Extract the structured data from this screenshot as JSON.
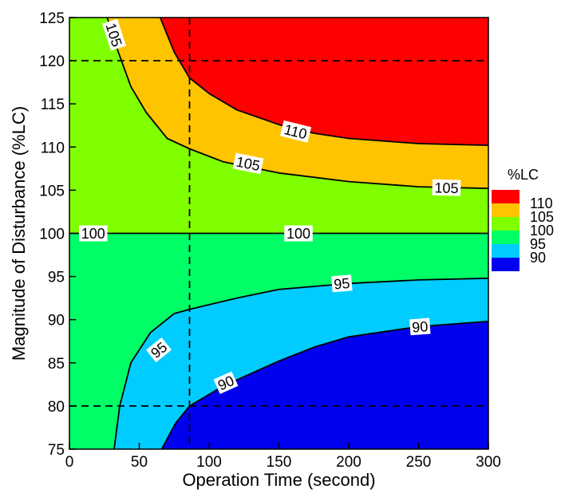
{
  "chart_data": {
    "type": "contour",
    "xlabel": "Operation Time (second)",
    "ylabel": "Magnitude of Disturbance (%LC)",
    "xlim": [
      0,
      300
    ],
    "ylim": [
      75,
      125
    ],
    "xticks": [
      0,
      50,
      100,
      150,
      200,
      250,
      300
    ],
    "yticks": [
      75,
      80,
      85,
      90,
      95,
      100,
      105,
      110,
      115,
      120,
      125
    ],
    "bands": [
      {
        "range": "> 110",
        "color": "#ff0000"
      },
      {
        "range": "105-110",
        "color": "#ffc400"
      },
      {
        "range": "100-105",
        "color": "#7fff00"
      },
      {
        "range": "95-100",
        "color": "#00ff66"
      },
      {
        "range": "90-95",
        "color": "#00ccff"
      },
      {
        "range": "< 90",
        "color": "#0000ee"
      }
    ],
    "contours": [
      {
        "level": 110,
        "points": [
          [
            65,
            125
          ],
          [
            75,
            121
          ],
          [
            86,
            118
          ],
          [
            100,
            116.2
          ],
          [
            120,
            114.3
          ],
          [
            150,
            112.6
          ],
          [
            175,
            111.6
          ],
          [
            200,
            111.0
          ],
          [
            250,
            110.4
          ],
          [
            300,
            110.2
          ]
        ]
      },
      {
        "level": 105,
        "points": [
          [
            27,
            125
          ],
          [
            35,
            121
          ],
          [
            44,
            117
          ],
          [
            55,
            114
          ],
          [
            70,
            111
          ],
          [
            86,
            109.8
          ],
          [
            110,
            108.3
          ],
          [
            150,
            107.0
          ],
          [
            200,
            106.0
          ],
          [
            250,
            105.4
          ],
          [
            300,
            105.2
          ]
        ]
      },
      {
        "level": 100,
        "points": [
          [
            0,
            100
          ],
          [
            300,
            100
          ]
        ]
      },
      {
        "level": 95,
        "points": [
          [
            32,
            75
          ],
          [
            36,
            80
          ],
          [
            44,
            85
          ],
          [
            58,
            88.5
          ],
          [
            75,
            90.7
          ],
          [
            86,
            91.2
          ],
          [
            120,
            92.5
          ],
          [
            150,
            93.5
          ],
          [
            200,
            94.2
          ],
          [
            250,
            94.6
          ],
          [
            300,
            94.8
          ]
        ]
      },
      {
        "level": 90,
        "points": [
          [
            66,
            75
          ],
          [
            76,
            78
          ],
          [
            86,
            80
          ],
          [
            110,
            82.3
          ],
          [
            150,
            85.2
          ],
          [
            175,
            86.8
          ],
          [
            200,
            88.0
          ],
          [
            250,
            89.2
          ],
          [
            300,
            89.8
          ]
        ]
      }
    ],
    "contour_labels": [
      {
        "text": "110",
        "x": 162,
        "y": 111.8
      },
      {
        "text": "105",
        "x": 128,
        "y": 108.1
      },
      {
        "text": "105",
        "x": 270,
        "y": 105.3
      },
      {
        "text": "105",
        "x": 32,
        "y": 123
      },
      {
        "text": "100",
        "x": 17,
        "y": 100
      },
      {
        "text": "100",
        "x": 164,
        "y": 100
      },
      {
        "text": "95",
        "x": 195,
        "y": 94.2
      },
      {
        "text": "95",
        "x": 64,
        "y": 86.5
      },
      {
        "text": "90",
        "x": 251,
        "y": 89.2
      },
      {
        "text": "90",
        "x": 112,
        "y": 82.7
      }
    ],
    "reference_lines": {
      "vertical": [
        86
      ],
      "horizontal": [
        120,
        80
      ]
    },
    "legend": {
      "title": "%LC",
      "placement": "right",
      "entries": [
        {
          "label": "110",
          "color": "#ff0000"
        },
        {
          "label": "105",
          "color": "#ffc400"
        },
        {
          "label": "100",
          "color": "#7fff00"
        },
        {
          "label": "95",
          "color": "#00ff66"
        },
        {
          "label": "90",
          "color": "#00ccff"
        },
        {
          "label": "",
          "color": "#0000ee"
        }
      ]
    }
  }
}
